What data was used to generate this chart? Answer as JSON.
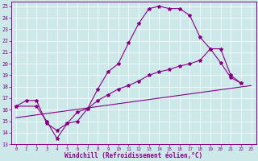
{
  "xlabel": "Windchill (Refroidissement éolien,°C)",
  "bg_color": "#cce8e8",
  "line_color": "#880088",
  "xlim": [
    -0.5,
    23.5
  ],
  "ylim": [
    13,
    25.4
  ],
  "xticks": [
    0,
    1,
    2,
    3,
    4,
    5,
    6,
    7,
    8,
    9,
    10,
    11,
    12,
    13,
    14,
    15,
    16,
    17,
    18,
    19,
    20,
    21,
    22,
    23
  ],
  "yticks": [
    13,
    14,
    15,
    16,
    17,
    18,
    19,
    20,
    21,
    22,
    23,
    24,
    25
  ],
  "curve1_x": [
    0,
    1,
    2,
    3,
    4,
    5,
    6,
    7,
    8,
    9,
    10,
    11,
    12,
    13,
    14,
    15,
    16,
    17,
    18,
    19,
    20,
    21,
    22
  ],
  "curve1_y": [
    16.3,
    16.8,
    16.8,
    14.8,
    14.2,
    14.8,
    15.8,
    16.1,
    17.8,
    19.3,
    20.0,
    21.8,
    23.5,
    24.8,
    25.0,
    24.8,
    24.8,
    24.2,
    22.3,
    21.3,
    20.1,
    18.8,
    18.3
  ],
  "curve2_x": [
    0,
    2,
    3,
    4,
    5,
    6,
    7,
    8,
    9,
    10,
    11,
    12,
    13,
    14,
    15,
    16,
    17,
    18,
    19,
    20,
    21,
    22
  ],
  "curve2_y": [
    16.3,
    16.3,
    15.0,
    13.5,
    14.8,
    15.0,
    16.1,
    16.8,
    17.3,
    17.8,
    18.1,
    18.5,
    19.0,
    19.3,
    19.5,
    19.8,
    20.0,
    20.3,
    21.3,
    21.3,
    19.0,
    18.3
  ],
  "line3_x": [
    0,
    23
  ],
  "line3_y": [
    15.3,
    18.1
  ]
}
